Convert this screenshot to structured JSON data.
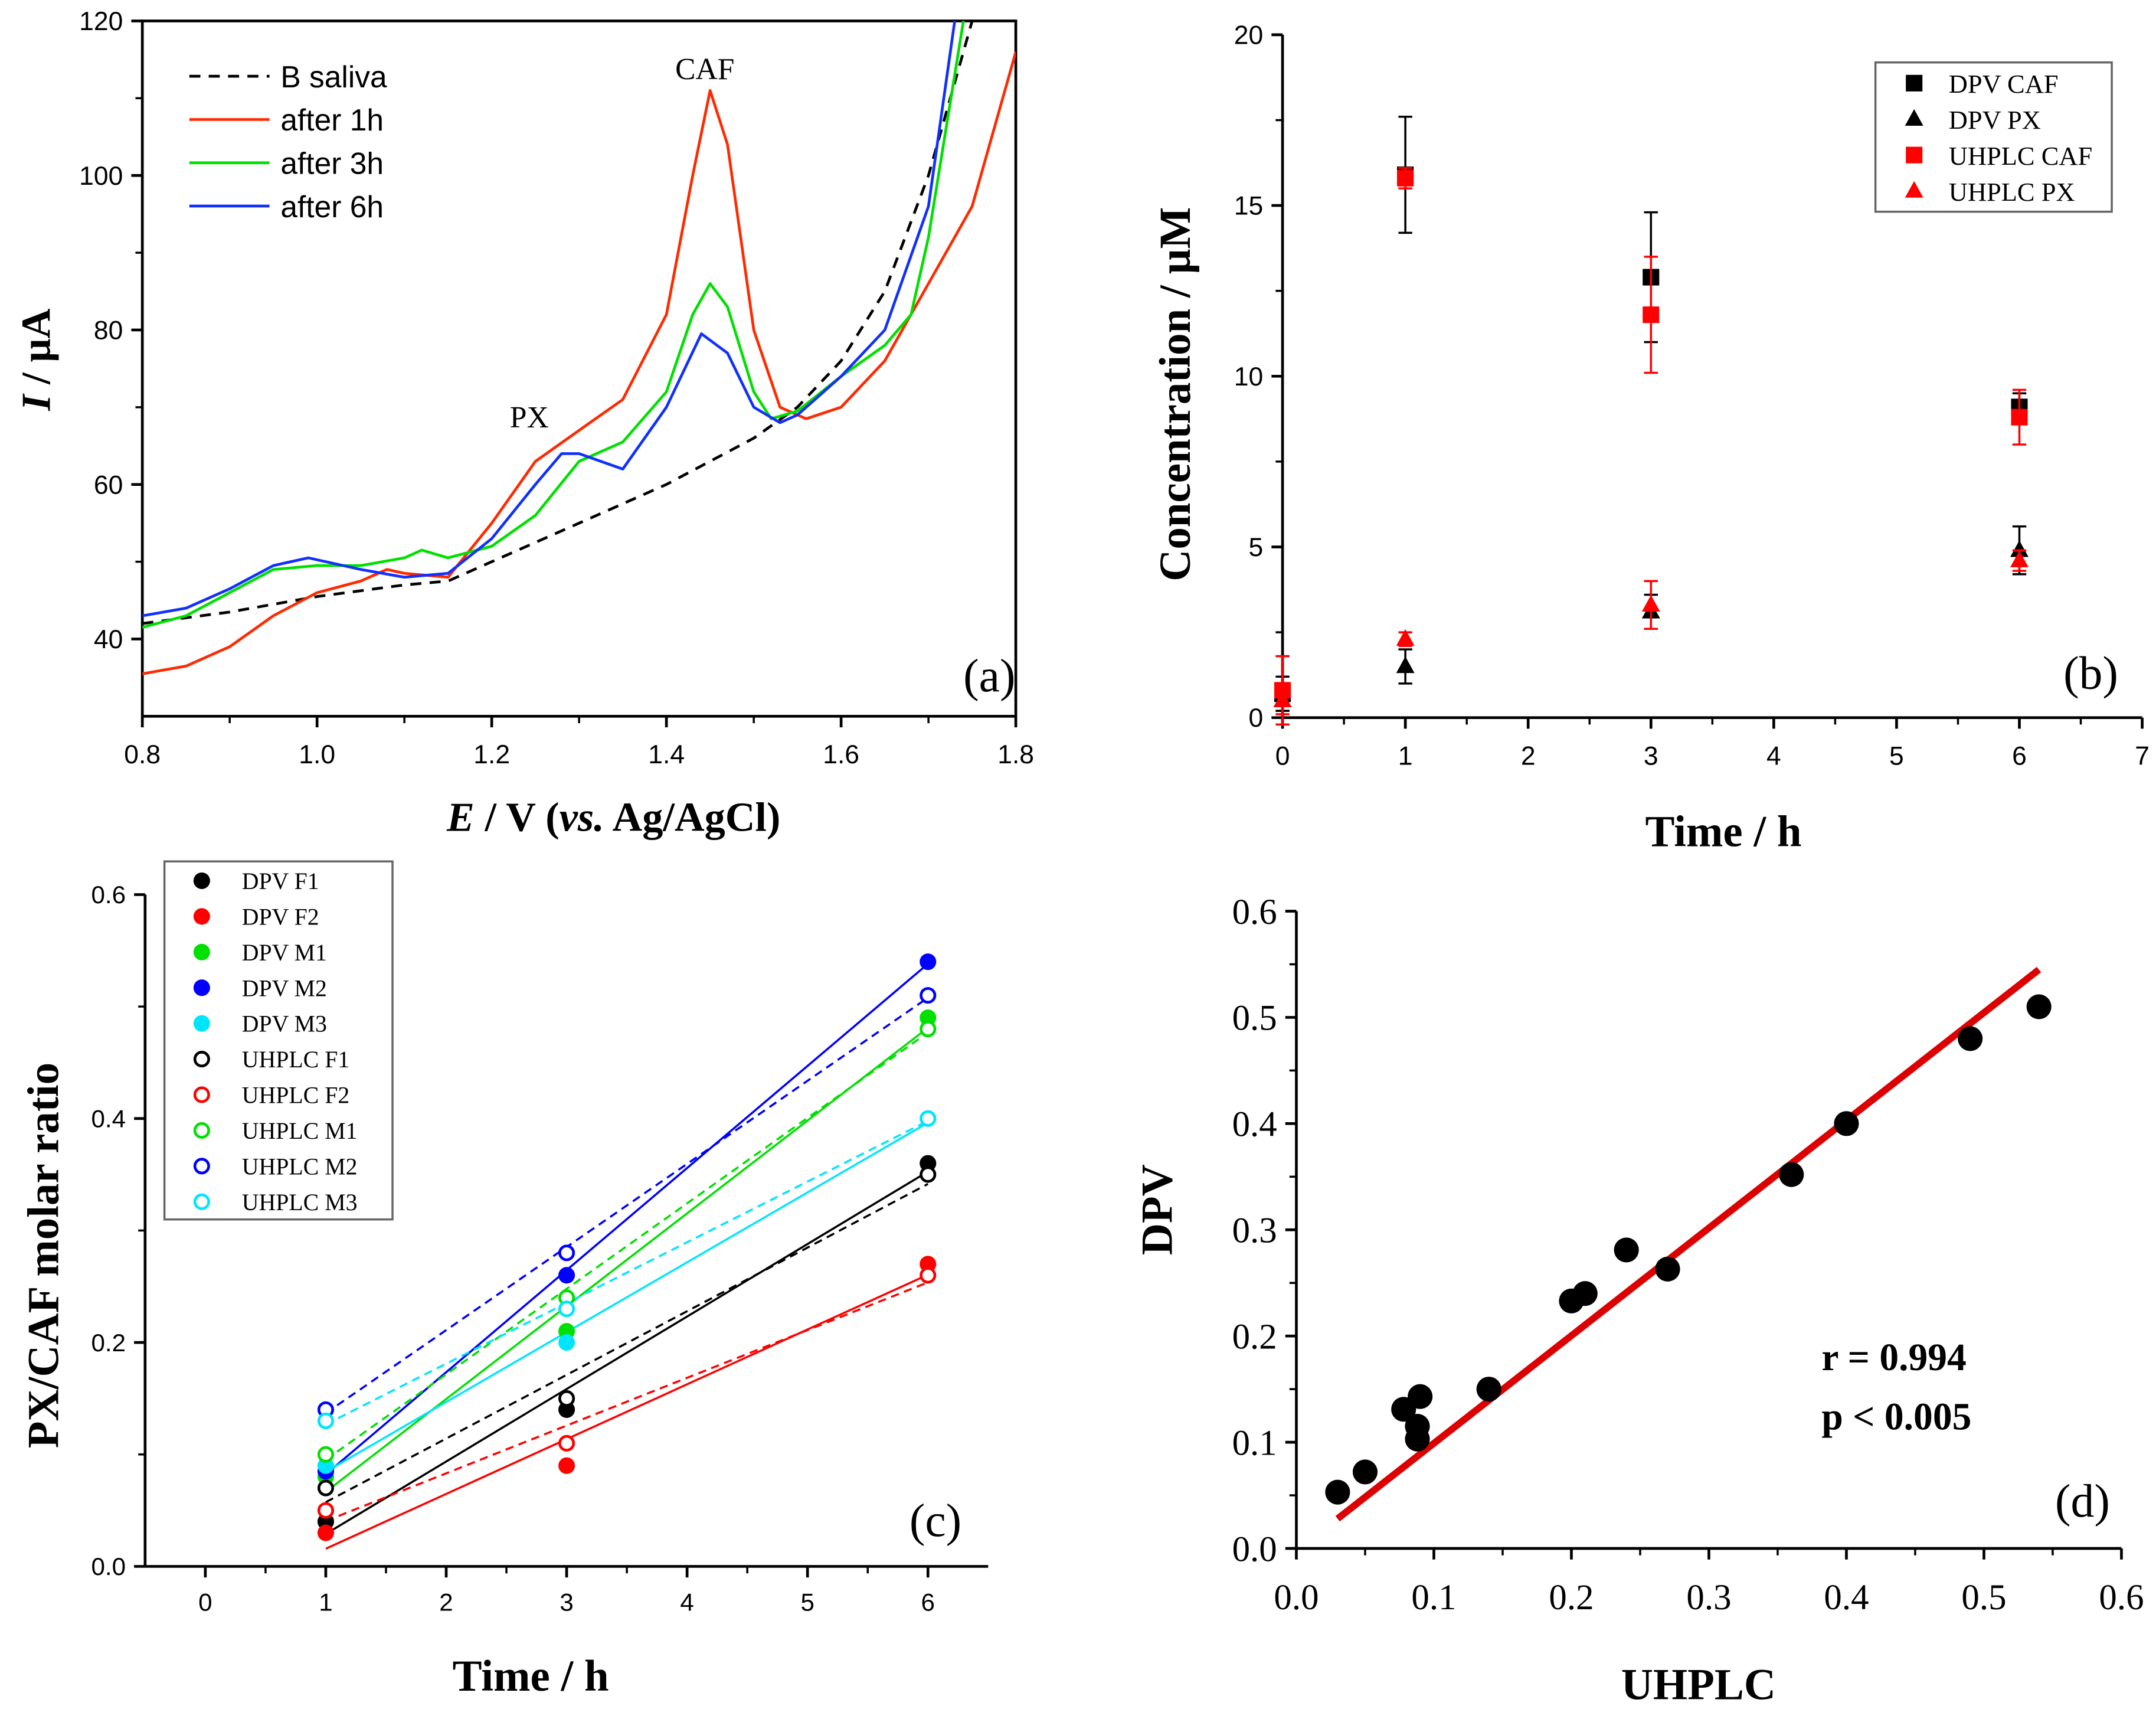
{
  "chart_data": [
    {
      "id": "a",
      "type": "line",
      "panel_label": "(a)",
      "xlabel_parts": [
        "E",
        " / V (",
        "vs.",
        " Ag/AgCl)"
      ],
      "ylabel_parts": [
        "I",
        " / µA"
      ],
      "xlim": [
        0.8,
        1.8
      ],
      "ylim": [
        30,
        120
      ],
      "xticks": [
        0.8,
        1.0,
        1.2,
        1.4,
        1.6,
        1.8
      ],
      "xtick_labels": [
        "0.8",
        "1.0",
        "1.2",
        "1.4",
        "1.6",
        "1.8"
      ],
      "yticks": [
        40,
        60,
        80,
        100,
        120
      ],
      "ytick_labels": [
        "40",
        "60",
        "80",
        "100",
        "120"
      ],
      "legend_position": "top-left",
      "annotations": [
        {
          "text": "PX",
          "x": 1.26,
          "y": 66
        },
        {
          "text": "CAF",
          "x": 1.445,
          "y": 117
        }
      ],
      "series": [
        {
          "name": "B saliva",
          "color": "#000000",
          "dash": true,
          "x": [
            0.8,
            0.9,
            1.0,
            1.1,
            1.15,
            1.2,
            1.3,
            1.4,
            1.5,
            1.55,
            1.6,
            1.65,
            1.7,
            1.75
          ],
          "y": [
            42,
            43.5,
            45.5,
            47,
            47.5,
            50,
            55,
            60,
            66,
            70,
            76,
            85,
            100,
            120
          ]
        },
        {
          "name": "after 1h",
          "color": "#ff2a00",
          "dash": false,
          "x": [
            0.8,
            0.85,
            0.9,
            0.95,
            1.0,
            1.05,
            1.08,
            1.1,
            1.15,
            1.2,
            1.25,
            1.3,
            1.35,
            1.4,
            1.43,
            1.45,
            1.47,
            1.5,
            1.53,
            1.56,
            1.6,
            1.65,
            1.7,
            1.75,
            1.8
          ],
          "y": [
            35.5,
            36.5,
            39,
            43,
            46,
            47.5,
            49,
            48.5,
            48,
            55,
            63,
            67,
            71,
            82,
            100,
            111,
            104,
            80,
            70,
            68.5,
            70,
            76,
            86,
            96,
            116
          ]
        },
        {
          "name": "after 3h",
          "color": "#00e000",
          "dash": false,
          "x": [
            0.8,
            0.85,
            0.9,
            0.95,
            1.0,
            1.05,
            1.1,
            1.12,
            1.15,
            1.2,
            1.25,
            1.3,
            1.35,
            1.4,
            1.43,
            1.45,
            1.47,
            1.5,
            1.52,
            1.55,
            1.6,
            1.65,
            1.68,
            1.7,
            1.74
          ],
          "y": [
            41.5,
            43,
            46,
            49,
            49.5,
            49.5,
            50.5,
            51.5,
            50.5,
            52,
            56,
            63,
            65.5,
            72,
            82,
            86,
            83,
            72,
            68.5,
            69.5,
            74,
            78,
            82,
            92,
            120
          ]
        },
        {
          "name": "after 6h",
          "color": "#1030ff",
          "dash": false,
          "x": [
            0.8,
            0.85,
            0.9,
            0.95,
            0.99,
            1.05,
            1.1,
            1.15,
            1.2,
            1.25,
            1.28,
            1.3,
            1.35,
            1.4,
            1.44,
            1.47,
            1.5,
            1.53,
            1.55,
            1.6,
            1.65,
            1.7,
            1.73
          ],
          "y": [
            43,
            44,
            46.5,
            49.5,
            50.5,
            49,
            48,
            48.5,
            53,
            60,
            64,
            64,
            62,
            70,
            79.5,
            77,
            70,
            68,
            69,
            74,
            80,
            96,
            120
          ]
        }
      ]
    },
    {
      "id": "b",
      "type": "scatter",
      "panel_label": "(b)",
      "xlabel": "Time / h",
      "ylabel": "Concentration / µM",
      "xlim": [
        0,
        7
      ],
      "ylim": [
        0,
        20
      ],
      "xticks": [
        0,
        1,
        2,
        3,
        4,
        5,
        6,
        7
      ],
      "xtick_labels": [
        "0",
        "1",
        "2",
        "3",
        "4",
        "5",
        "6",
        "7"
      ],
      "yticks": [
        0,
        5,
        10,
        15,
        20
      ],
      "ytick_labels": [
        "0",
        "5",
        "10",
        "15",
        "20"
      ],
      "legend_position": "top-right",
      "series": [
        {
          "name": "DPV CAF",
          "color": "#000000",
          "marker": "square",
          "x": [
            0,
            1,
            3,
            6
          ],
          "y": [
            0.7,
            15.9,
            12.9,
            9.1
          ],
          "err": [
            0.5,
            1.7,
            1.9,
            0.4
          ]
        },
        {
          "name": "DPV PX",
          "color": "#000000",
          "marker": "triangle",
          "x": [
            0,
            1,
            3,
            6
          ],
          "y": [
            0.5,
            1.5,
            3.1,
            4.9
          ],
          "err": [
            0.3,
            0.5,
            0.5,
            0.7
          ]
        },
        {
          "name": "UHPLC CAF",
          "color": "#ff0000",
          "marker": "square",
          "x": [
            0,
            1,
            3,
            6
          ],
          "y": [
            0.8,
            15.8,
            11.8,
            8.8
          ],
          "err": [
            1.0,
            0.3,
            1.7,
            0.8
          ]
        },
        {
          "name": "UHPLC PX",
          "color": "#ff0000",
          "marker": "triangle",
          "x": [
            0,
            1,
            3,
            6
          ],
          "y": [
            0.5,
            2.3,
            3.3,
            4.6
          ],
          "err": [
            0.4,
            0.2,
            0.7,
            0.3
          ]
        }
      ]
    },
    {
      "id": "c",
      "type": "scatter",
      "panel_label": "(c)",
      "xlabel": "Time / h",
      "ylabel": "PX/CAF molar ratio",
      "xlim": [
        -0.5,
        6.5
      ],
      "ylim": [
        0,
        0.6
      ],
      "xticks": [
        0,
        1,
        2,
        3,
        4,
        5,
        6
      ],
      "xtick_labels": [
        "0",
        "1",
        "2",
        "3",
        "4",
        "5",
        "6"
      ],
      "yticks": [
        0,
        0.2,
        0.4,
        0.6
      ],
      "ytick_labels": [
        "0.0",
        "0.2",
        "0.4",
        "0.6"
      ],
      "legend_position": "top-left",
      "series": [
        {
          "name": "DPV F1",
          "color": "#000000",
          "filled": true,
          "x": [
            1,
            3,
            6
          ],
          "y": [
            0.04,
            0.14,
            0.36
          ]
        },
        {
          "name": "DPV F2",
          "color": "#ff0000",
          "filled": true,
          "x": [
            1,
            3,
            6
          ],
          "y": [
            0.03,
            0.09,
            0.27
          ]
        },
        {
          "name": "DPV M1",
          "color": "#00e000",
          "filled": true,
          "x": [
            1,
            3,
            6
          ],
          "y": [
            0.08,
            0.21,
            0.49
          ]
        },
        {
          "name": "DPV M2",
          "color": "#0000ff",
          "filled": true,
          "x": [
            1,
            3,
            6
          ],
          "y": [
            0.085,
            0.26,
            0.54
          ]
        },
        {
          "name": "DPV M3",
          "color": "#00e5ff",
          "filled": true,
          "x": [
            1,
            3,
            6
          ],
          "y": [
            0.09,
            0.2,
            0.4
          ]
        },
        {
          "name": "UHPLC F1",
          "color": "#000000",
          "filled": false,
          "x": [
            1,
            3,
            6
          ],
          "y": [
            0.07,
            0.15,
            0.35
          ]
        },
        {
          "name": "UHPLC F2",
          "color": "#ff0000",
          "filled": false,
          "x": [
            1,
            3,
            6
          ],
          "y": [
            0.05,
            0.11,
            0.26
          ]
        },
        {
          "name": "UHPLC M1",
          "color": "#00e000",
          "filled": false,
          "x": [
            1,
            3,
            6
          ],
          "y": [
            0.1,
            0.24,
            0.48
          ]
        },
        {
          "name": "UHPLC M2",
          "color": "#0000ff",
          "filled": false,
          "x": [
            1,
            3,
            6
          ],
          "y": [
            0.14,
            0.28,
            0.51
          ]
        },
        {
          "name": "UHPLC M3",
          "color": "#00e5ff",
          "filled": false,
          "x": [
            1,
            3,
            6
          ],
          "y": [
            0.13,
            0.23,
            0.4
          ]
        }
      ]
    },
    {
      "id": "d",
      "type": "scatter",
      "panel_label": "(d)",
      "xlabel": "UHPLC",
      "ylabel": "DPV",
      "xlim": [
        0,
        0.6
      ],
      "ylim": [
        0,
        0.6
      ],
      "xticks": [
        0,
        0.1,
        0.2,
        0.3,
        0.4,
        0.5,
        0.6
      ],
      "xtick_labels": [
        "0.0",
        "0.1",
        "0.2",
        "0.3",
        "0.4",
        "0.5",
        "0.6"
      ],
      "yticks": [
        0,
        0.1,
        0.2,
        0.3,
        0.4,
        0.5,
        0.6
      ],
      "ytick_labels": [
        "0.0",
        "0.1",
        "0.2",
        "0.3",
        "0.4",
        "0.5",
        "0.6"
      ],
      "annotations": [
        "r = 0.994",
        "p < 0.005"
      ],
      "fit_line": {
        "color": "#dd0000",
        "x": [
          0.03,
          0.54
        ],
        "y": [
          0.028,
          0.545
        ]
      },
      "points": {
        "color": "#000000",
        "x": [
          0.03,
          0.05,
          0.078,
          0.09,
          0.088,
          0.088,
          0.14,
          0.2,
          0.21,
          0.24,
          0.27,
          0.36,
          0.4,
          0.49,
          0.54
        ],
        "y": [
          0.053,
          0.072,
          0.131,
          0.143,
          0.115,
          0.103,
          0.15,
          0.233,
          0.24,
          0.281,
          0.263,
          0.352,
          0.4,
          0.48,
          0.51
        ]
      }
    }
  ]
}
